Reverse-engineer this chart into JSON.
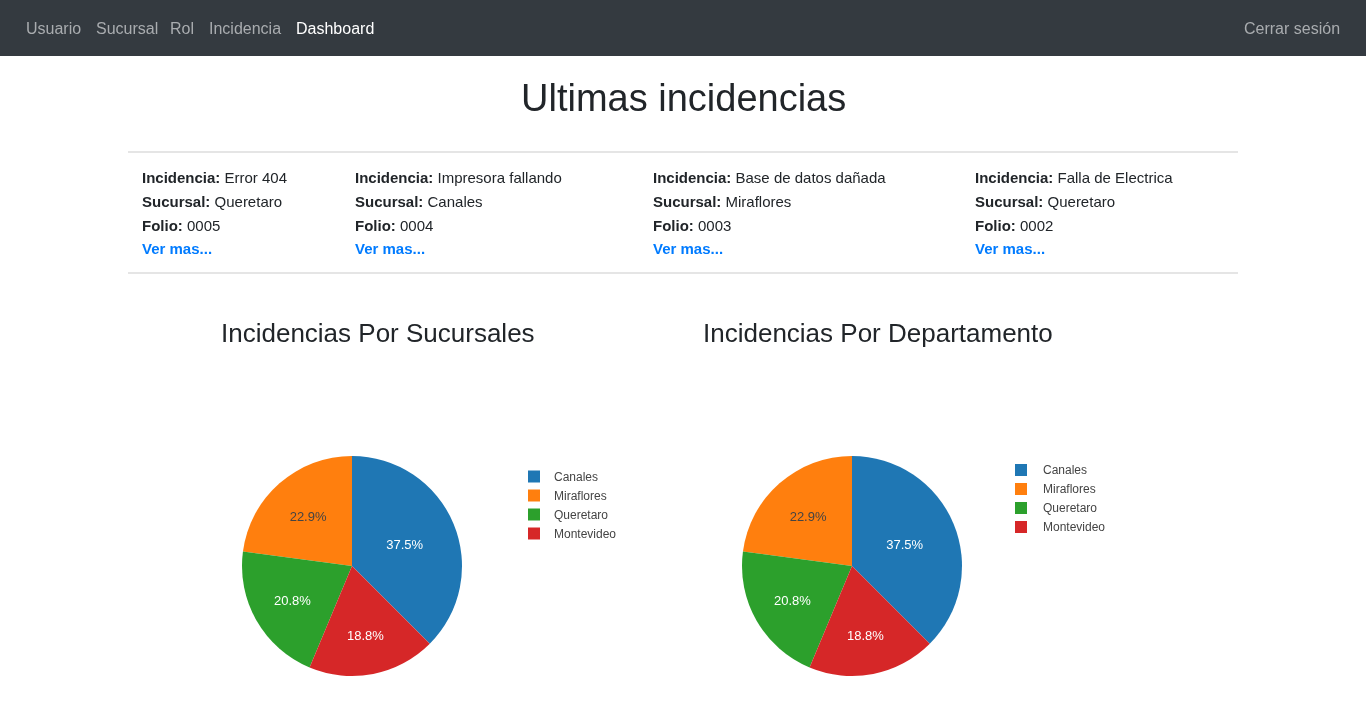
{
  "chart_data": [
    {
      "type": "other",
      "title": "Ultimas incidencias",
      "annotations": [
        "Usuario",
        "Sucursal",
        "Rol",
        "Incidencia",
        "Dashboard",
        "Cerrar sesión",
        "Incidencia: Error 404",
        "Sucursal: Queretaro",
        "Folio: 0005",
        "Ver mas...",
        "Incidencia: Impresora fallando",
        "Sucursal: Canales",
        "Folio: 0004",
        "Ver mas...",
        "Incidencia: Base de datos dañada",
        "Sucursal: Miraflores",
        "Folio: 0003",
        "Ver mas...",
        "Incidencia: Falla de Electrica",
        "Sucursal: Queretaro",
        "Folio: 0002",
        "Ver mas..."
      ]
    },
    {
      "type": "pie",
      "title": "Incidencias Por Sucursales",
      "categories": [
        "Canales",
        "Miraflores",
        "Queretaro",
        "Montevideo"
      ],
      "values": [
        37.5,
        22.9,
        20.8,
        18.8
      ],
      "value_labels": [
        "37.5%",
        "22.9%",
        "20.8%",
        "18.8%"
      ],
      "colors": [
        "#1f77b4",
        "#ff7f0e",
        "#2ca02c",
        "#d62728"
      ],
      "legend": "right"
    },
    {
      "type": "pie",
      "title": "Incidencias Por Departamento",
      "categories": [
        "Canales",
        "Miraflores",
        "Queretaro",
        "Montevideo"
      ],
      "values": [
        37.5,
        22.9,
        20.8,
        18.8
      ],
      "value_labels": [
        "37.5%",
        "22.9%",
        "20.8%",
        "18.8%"
      ],
      "colors": [
        "#1f77b4",
        "#ff7f0e",
        "#2ca02c",
        "#d62728"
      ],
      "legend": "right"
    }
  ]
}
